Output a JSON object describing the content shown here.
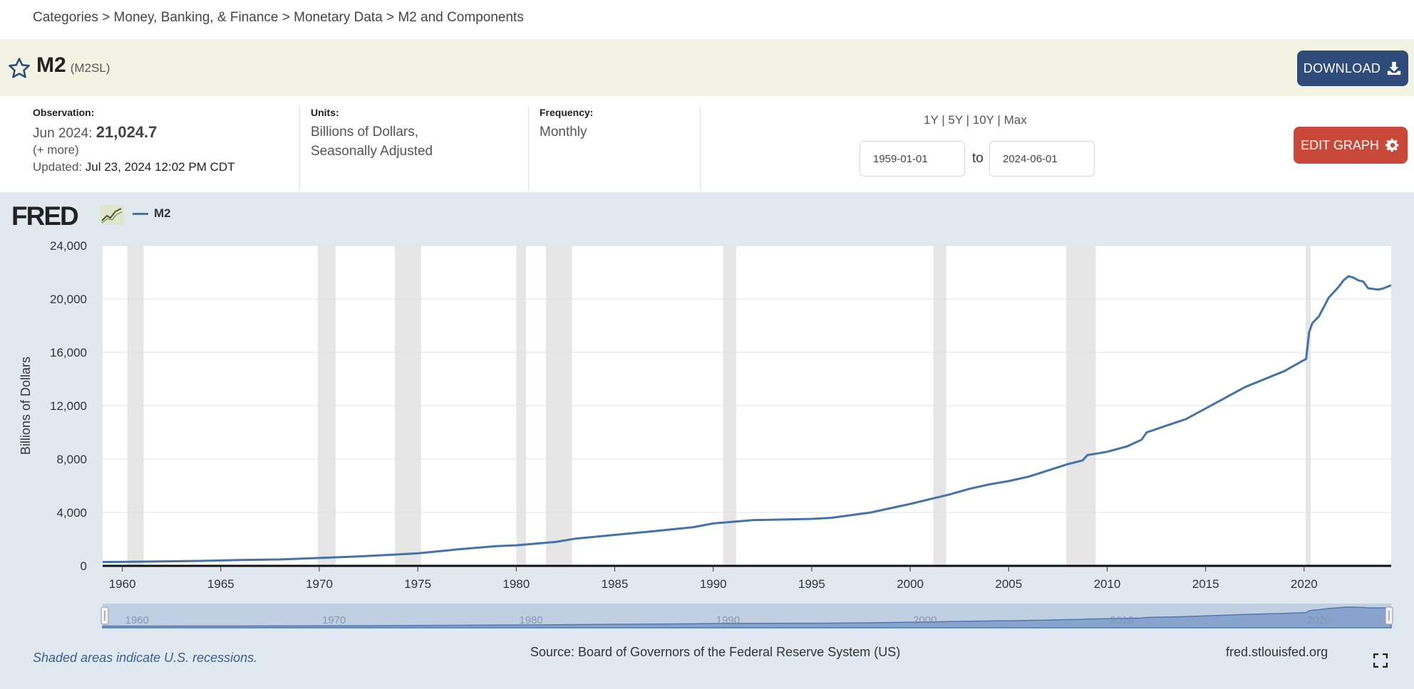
{
  "breadcrumb": [
    "Categories",
    "Money, Banking, & Finance",
    "Monetary Data",
    "M2 and Components"
  ],
  "breadcrumb_sep": " > ",
  "series": {
    "title": "M2",
    "id": "(M2SL)"
  },
  "buttons": {
    "download": "DOWNLOAD",
    "edit_graph": "EDIT GRAPH"
  },
  "observation": {
    "label": "Observation:",
    "date": "Jun 2024:",
    "value": "21,024.7",
    "more": "(+ more)",
    "updated_label": "Updated:",
    "updated_value": "Jul 23, 2024 12:02 PM CDT"
  },
  "units": {
    "label": "Units:",
    "line1": "Billions of Dollars,",
    "line2": "Seasonally Adjusted"
  },
  "frequency": {
    "label": "Frequency:",
    "value": "Monthly"
  },
  "ranges": {
    "y1": "1Y",
    "y5": "5Y",
    "y10": "10Y",
    "max": "Max",
    "sep": " | "
  },
  "date_range": {
    "start": "1959-01-01",
    "to": "to",
    "end": "2024-06-01"
  },
  "logo": {
    "text": "FRED",
    "icon": "line-chart-icon"
  },
  "legend": {
    "label": "M2"
  },
  "footer": {
    "note": "Shaded areas indicate U.S. recessions.",
    "source": "Source: Board of Governors of the Federal Reserve System (US)",
    "site": "fred.stlouisfed.org"
  },
  "colors": {
    "line": "#4572a7",
    "recession": "#e6e6e6",
    "panel": "#e1e9f0",
    "download": "#2f4b7a",
    "edit": "#c8493a"
  },
  "chart_data": {
    "type": "line",
    "ylabel": "Billions of Dollars",
    "ylim": [
      0,
      24000
    ],
    "yticks": [
      0,
      4000,
      8000,
      12000,
      16000,
      20000,
      24000
    ],
    "ytick_labels": [
      "0",
      "4,000",
      "8,000",
      "12,000",
      "16,000",
      "20,000",
      "24,000"
    ],
    "xlim": [
      1959.0,
      2024.42
    ],
    "xticks": [
      1960,
      1965,
      1970,
      1975,
      1980,
      1985,
      1990,
      1995,
      2000,
      2005,
      2010,
      2015,
      2020
    ],
    "navigator_ticks": [
      1960,
      1970,
      1980,
      1990,
      2000,
      2010,
      2020
    ],
    "grid": true,
    "recessions": [
      [
        1960.25,
        1961.08
      ],
      [
        1969.92,
        1970.83
      ],
      [
        1973.83,
        1975.17
      ],
      [
        1980.0,
        1980.5
      ],
      [
        1981.5,
        1982.83
      ],
      [
        1990.5,
        1991.17
      ],
      [
        2001.17,
        2001.83
      ],
      [
        2007.92,
        2009.42
      ],
      [
        2020.08,
        2020.33
      ]
    ],
    "series": [
      {
        "name": "M2",
        "x": [
          1959.0,
          1960,
          1962,
          1964,
          1966,
          1968,
          1970,
          1972,
          1974,
          1975,
          1977,
          1979,
          1980,
          1982,
          1983,
          1985,
          1987,
          1989,
          1990,
          1992,
          1994,
          1995,
          1996,
          1998,
          2000,
          2001,
          2002,
          2003,
          2004,
          2005,
          2006,
          2007,
          2008,
          2008.75,
          2009,
          2010,
          2011,
          2011.75,
          2012,
          2013,
          2014,
          2015,
          2016,
          2017,
          2018,
          2019,
          2019.9,
          2020.1,
          2020.25,
          2020.42,
          2020.75,
          2021,
          2021.25,
          2021.5,
          2021.75,
          2022.0,
          2022.25,
          2022.5,
          2022.75,
          2023.0,
          2023.25,
          2023.5,
          2023.75,
          2024.0,
          2024.42
        ],
        "values": [
          287,
          300,
          330,
          375,
          435,
          480,
          590,
          710,
          860,
          940,
          1230,
          1480,
          1540,
          1790,
          2040,
          2320,
          2600,
          2900,
          3180,
          3430,
          3490,
          3520,
          3600,
          4000,
          4640,
          5000,
          5350,
          5770,
          6100,
          6350,
          6680,
          7150,
          7620,
          7900,
          8300,
          8550,
          8950,
          9450,
          10000,
          10500,
          11000,
          11800,
          12600,
          13400,
          14000,
          14600,
          15350,
          15500,
          17500,
          18200,
          18700,
          19400,
          20100,
          20500,
          20900,
          21400,
          21700,
          21600,
          21400,
          21300,
          20800,
          20750,
          20700,
          20780,
          21025
        ]
      }
    ]
  }
}
